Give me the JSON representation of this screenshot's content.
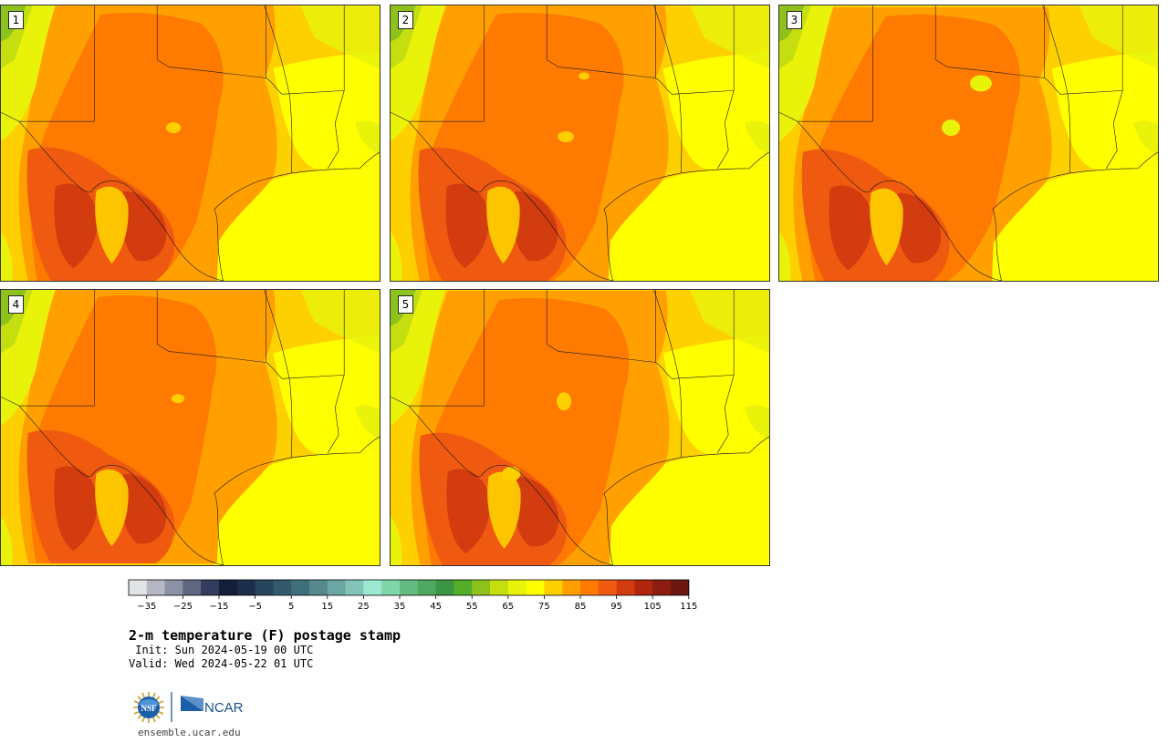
{
  "panels": [
    {
      "label": "1"
    },
    {
      "label": "2"
    },
    {
      "label": "3"
    },
    {
      "label": "4"
    },
    {
      "label": "5"
    }
  ],
  "colorbar": {
    "colors": [
      "#e2e4e8",
      "#b5b8c4",
      "#8c91a3",
      "#5e6682",
      "#323c5e",
      "#141d3a",
      "#1d2d4c",
      "#27455c",
      "#325a6b",
      "#3f6f7b",
      "#558a8c",
      "#6aa6a2",
      "#83c4b9",
      "#9de8d3",
      "#7fd6a9",
      "#65bc82",
      "#4fa860",
      "#3a9642",
      "#55ad2c",
      "#8dc21a",
      "#c4de10",
      "#e9f30a",
      "#ffff00",
      "#ffd000",
      "#ffa000",
      "#ff7a00",
      "#f05a10",
      "#d23c0e",
      "#b0260c",
      "#8c1b10",
      "#6b1610"
    ],
    "tick_labels": [
      "−35",
      "−25",
      "−15",
      "−5",
      "5",
      "15",
      "25",
      "35",
      "45",
      "55",
      "65",
      "75",
      "85",
      "95",
      "105",
      "115"
    ]
  },
  "title": "2-m temperature (F) postage stamp",
  "init": " Init: Sun 2024-05-19 00 UTC",
  "valid": "Valid: Wed 2024-05-22 01 UTC",
  "logos": {
    "nsf": "NSF",
    "ncar": "NCAR"
  },
  "url": "ensemble.ucar.edu"
}
